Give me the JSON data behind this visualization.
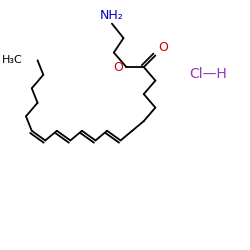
{
  "background_color": "#ffffff",
  "bond_color": "#000000",
  "nh2_color": "#0000bb",
  "oxygen_color": "#cc0000",
  "hcl_color": "#9933bb",
  "hcl_text": "Cl—H",
  "h3c_text": "H₃C",
  "nh2_text": "NH₂",
  "o_text": "O",
  "co_text": "O",
  "figsize": [
    2.5,
    2.5
  ],
  "dpi": 100
}
